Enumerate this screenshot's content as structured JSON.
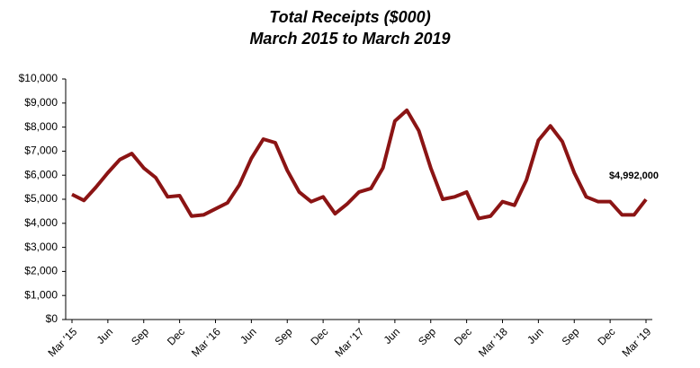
{
  "chart_data": {
    "type": "line",
    "title": "Total Receipts ($000)",
    "subtitle": "March 2015 to March 2019",
    "categories": [
      "Mar '15",
      null,
      null,
      "Jun",
      null,
      null,
      "Sep",
      null,
      null,
      "Dec",
      null,
      null,
      "Mar '16",
      null,
      null,
      "Jun",
      null,
      null,
      "Sep",
      null,
      null,
      "Dec",
      null,
      null,
      "Mar '17",
      null,
      null,
      "Jun",
      null,
      null,
      "Sep",
      null,
      null,
      "Dec",
      null,
      null,
      "Mar '18",
      null,
      null,
      "Jun",
      null,
      null,
      "Sep",
      null,
      null,
      "Dec",
      null,
      null,
      "Mar '19"
    ],
    "values": [
      5200,
      4950,
      5500,
      6100,
      6650,
      6900,
      6300,
      5900,
      5100,
      5150,
      4300,
      4350,
      4600,
      4850,
      5600,
      6700,
      7500,
      7350,
      6200,
      5300,
      4900,
      5100,
      4400,
      4800,
      5300,
      5450,
      6300,
      8250,
      8700,
      7850,
      6300,
      5000,
      5100,
      5300,
      4200,
      4300,
      4900,
      4750,
      5800,
      7450,
      8050,
      7400,
      6100,
      5100,
      4900,
      4900,
      4350,
      4350,
      4992
    ],
    "value_labels": [
      null,
      null,
      null,
      null,
      null,
      null,
      null,
      null,
      null,
      null,
      null,
      null,
      null,
      null,
      null,
      null,
      null,
      null,
      null,
      null,
      null,
      null,
      null,
      null,
      null,
      null,
      null,
      null,
      null,
      null,
      null,
      null,
      null,
      null,
      null,
      null,
      null,
      null,
      null,
      null,
      null,
      null,
      null,
      null,
      null,
      null,
      null,
      null,
      "$4,992,000"
    ],
    "color": "#8b1414",
    "ylim": [
      0,
      10000
    ],
    "yticks": [
      {
        "value": 0,
        "label": "$0"
      },
      {
        "value": 1000,
        "label": "$1,000"
      },
      {
        "value": 2000,
        "label": "$2,000"
      },
      {
        "value": 3000,
        "label": "$3,000"
      },
      {
        "value": 4000,
        "label": "$4,000"
      },
      {
        "value": 5000,
        "label": "$5,000"
      },
      {
        "value": 6000,
        "label": "$6,000"
      },
      {
        "value": 7000,
        "label": "$7,000"
      },
      {
        "value": 8000,
        "label": "$8,000"
      },
      {
        "value": 9000,
        "label": "$9,000"
      },
      {
        "value": 10000,
        "label": "$10,000"
      }
    ],
    "grid": false
  }
}
